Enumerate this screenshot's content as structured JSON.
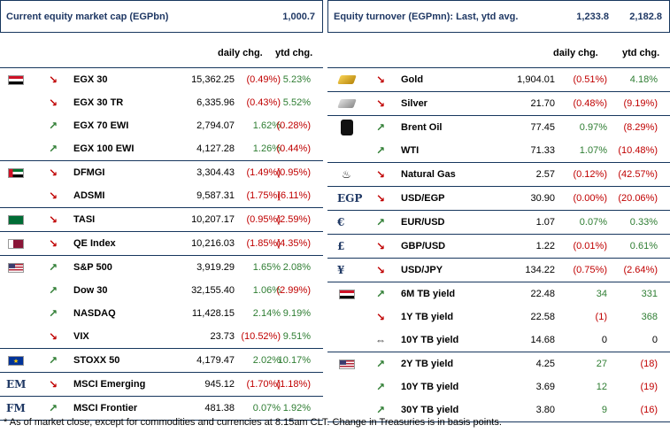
{
  "left": {
    "title": "Current equity market cap (EGPbn)",
    "title_value": "1,000.7",
    "col_daily": "daily chg.",
    "col_ytd": "ytd chg.",
    "groups": [
      {
        "flag": "egypt",
        "rows": [
          {
            "arrow": "down",
            "name": "EGX 30",
            "value": "15,362.25",
            "daily": "(0.49%)",
            "daily_sign": "neg",
            "ytd": "5.23%",
            "ytd_sign": "pos"
          },
          {
            "arrow": "down",
            "name": "EGX 30 TR",
            "value": "6,335.96",
            "daily": "(0.43%)",
            "daily_sign": "neg",
            "ytd": "5.52%",
            "ytd_sign": "pos"
          },
          {
            "arrow": "up",
            "name": "EGX 70 EWI",
            "value": "2,794.07",
            "daily": "1.62%",
            "daily_sign": "pos",
            "ytd": "(0.28%)",
            "ytd_sign": "neg"
          },
          {
            "arrow": "up",
            "name": "EGX 100 EWI",
            "value": "4,127.28",
            "daily": "1.26%",
            "daily_sign": "pos",
            "ytd": "(0.44%)",
            "ytd_sign": "neg"
          }
        ]
      },
      {
        "flag": "uae",
        "rows": [
          {
            "arrow": "down",
            "name": "DFMGI",
            "value": "3,304.43",
            "daily": "(1.49%)",
            "daily_sign": "neg",
            "ytd": "(0.95%)",
            "ytd_sign": "neg"
          },
          {
            "arrow": "down",
            "name": "ADSMI",
            "value": "9,587.31",
            "daily": "(1.75%)",
            "daily_sign": "neg",
            "ytd": "(6.11%)",
            "ytd_sign": "neg"
          }
        ]
      },
      {
        "flag": "ksa",
        "rows": [
          {
            "arrow": "down",
            "name": "TASI",
            "value": "10,207.17",
            "daily": "(0.95%)",
            "daily_sign": "neg",
            "ytd": "(2.59%)",
            "ytd_sign": "neg"
          }
        ]
      },
      {
        "flag": "qatar",
        "rows": [
          {
            "arrow": "down",
            "name": "QE Index",
            "value": "10,216.03",
            "daily": "(1.85%)",
            "daily_sign": "neg",
            "ytd": "(4.35%)",
            "ytd_sign": "neg"
          }
        ]
      },
      {
        "flag": "us",
        "rows": [
          {
            "arrow": "up",
            "name": "S&P 500",
            "value": "3,919.29",
            "daily": "1.65%",
            "daily_sign": "pos",
            "ytd": "2.08%",
            "ytd_sign": "pos"
          },
          {
            "arrow": "up",
            "name": "Dow 30",
            "value": "32,155.40",
            "daily": "1.06%",
            "daily_sign": "pos",
            "ytd": "(2.99%)",
            "ytd_sign": "neg"
          },
          {
            "arrow": "up",
            "name": "NASDAQ",
            "value": "11,428.15",
            "daily": "2.14%",
            "daily_sign": "pos",
            "ytd": "9.19%",
            "ytd_sign": "pos"
          },
          {
            "arrow": "down",
            "name": "VIX",
            "value": "23.73",
            "daily": "(10.52%)",
            "daily_sign": "neg",
            "ytd": "9.51%",
            "ytd_sign": "pos"
          }
        ]
      },
      {
        "flag": "eu",
        "rows": [
          {
            "arrow": "up",
            "name": "STOXX 50",
            "value": "4,179.47",
            "daily": "2.02%",
            "daily_sign": "pos",
            "ytd": "10.17%",
            "ytd_sign": "pos"
          }
        ]
      },
      {
        "flag": "em",
        "flag_text": "EM",
        "rows": [
          {
            "arrow": "down",
            "name": "MSCI Emerging",
            "value": "945.12",
            "daily": "(1.70%)",
            "daily_sign": "neg",
            "ytd": "(1.18%)",
            "ytd_sign": "neg"
          }
        ]
      },
      {
        "flag": "fm",
        "flag_text": "FM",
        "rows": [
          {
            "arrow": "up",
            "name": "MSCI Frontier",
            "value": "481.38",
            "daily": "0.07%",
            "daily_sign": "pos",
            "ytd": "1.92%",
            "ytd_sign": "pos"
          }
        ]
      }
    ]
  },
  "right": {
    "title": "Equity turnover (EGPmn): Last, ytd avg.",
    "title_value_last": "1,233.8",
    "title_value_avg": "2,182.8",
    "col_daily": "daily chg.",
    "col_ytd": "ytd chg.",
    "groups": [
      {
        "icon": "gold",
        "rows": [
          {
            "arrow": "down",
            "name": "Gold",
            "value": "1,904.01",
            "daily": "(0.51%)",
            "daily_sign": "neg",
            "ytd": "4.18%",
            "ytd_sign": "pos"
          }
        ]
      },
      {
        "icon": "silver",
        "rows": [
          {
            "arrow": "down",
            "name": "Silver",
            "value": "21.70",
            "daily": "(0.48%)",
            "daily_sign": "neg",
            "ytd": "(9.19%)",
            "ytd_sign": "neg"
          }
        ]
      },
      {
        "icon": "barrel",
        "rows": [
          {
            "arrow": "up",
            "name": "Brent Oil",
            "value": "77.45",
            "daily": "0.97%",
            "daily_sign": "pos",
            "ytd": "(8.29%)",
            "ytd_sign": "neg"
          },
          {
            "arrow": "up",
            "name": "WTI",
            "value": "71.33",
            "daily": "1.07%",
            "daily_sign": "pos",
            "ytd": "(10.48%)",
            "ytd_sign": "neg"
          }
        ]
      },
      {
        "icon": "flame",
        "icon_text": "🔥",
        "rows": [
          {
            "arrow": "down",
            "name": "Natural Gas",
            "value": "2.57",
            "daily": "(0.12%)",
            "daily_sign": "neg",
            "ytd": "(42.57%)",
            "ytd_sign": "neg"
          }
        ]
      },
      {
        "icon": "text",
        "icon_text": "EGP",
        "rows": [
          {
            "arrow": "down",
            "name": "USD/EGP",
            "value": "30.90",
            "daily": "(0.00%)",
            "daily_sign": "neg",
            "ytd": "(20.06%)",
            "ytd_sign": "neg"
          }
        ]
      },
      {
        "icon": "text",
        "icon_text": "€",
        "rows": [
          {
            "arrow": "up",
            "name": "EUR/USD",
            "value": "1.07",
            "daily": "0.07%",
            "daily_sign": "pos",
            "ytd": "0.33%",
            "ytd_sign": "pos"
          }
        ]
      },
      {
        "icon": "text",
        "icon_text": "£",
        "rows": [
          {
            "arrow": "down",
            "name": "GBP/USD",
            "value": "1.22",
            "daily": "(0.01%)",
            "daily_sign": "neg",
            "ytd": "0.61%",
            "ytd_sign": "pos"
          }
        ]
      },
      {
        "icon": "text",
        "icon_text": "¥",
        "rows": [
          {
            "arrow": "down",
            "name": "USD/JPY",
            "value": "134.22",
            "daily": "(0.75%)",
            "daily_sign": "neg",
            "ytd": "(2.64%)",
            "ytd_sign": "neg"
          }
        ]
      },
      {
        "icon": "egypt",
        "rows": [
          {
            "arrow": "up",
            "name": "6M TB yield",
            "value": "22.48",
            "daily": "34",
            "daily_sign": "pos",
            "ytd": "331",
            "ytd_sign": "pos"
          },
          {
            "arrow": "down",
            "name": "1Y TB yield",
            "value": "22.58",
            "daily": "(1)",
            "daily_sign": "neg",
            "ytd": "368",
            "ytd_sign": "pos"
          },
          {
            "arrow": "flat",
            "name": "10Y TB yield",
            "value": "14.68",
            "daily": "0",
            "daily_sign": "neu",
            "ytd": "0",
            "ytd_sign": "neu"
          }
        ]
      },
      {
        "icon": "us",
        "rows": [
          {
            "arrow": "up",
            "name": "2Y TB yield",
            "value": "4.25",
            "daily": "27",
            "daily_sign": "pos",
            "ytd": "(18)",
            "ytd_sign": "neg"
          },
          {
            "arrow": "up",
            "name": "10Y TB yield",
            "value": "3.69",
            "daily": "12",
            "daily_sign": "pos",
            "ytd": "(19)",
            "ytd_sign": "neg"
          },
          {
            "arrow": "up",
            "name": "30Y TB yield",
            "value": "3.80",
            "daily": "9",
            "daily_sign": "pos",
            "ytd": "(16)",
            "ytd_sign": "neg"
          }
        ]
      }
    ]
  },
  "footnote": "* As of market close, except for commodities and currencies at 8.15am CLT. Change in Treasuries is in basis points."
}
